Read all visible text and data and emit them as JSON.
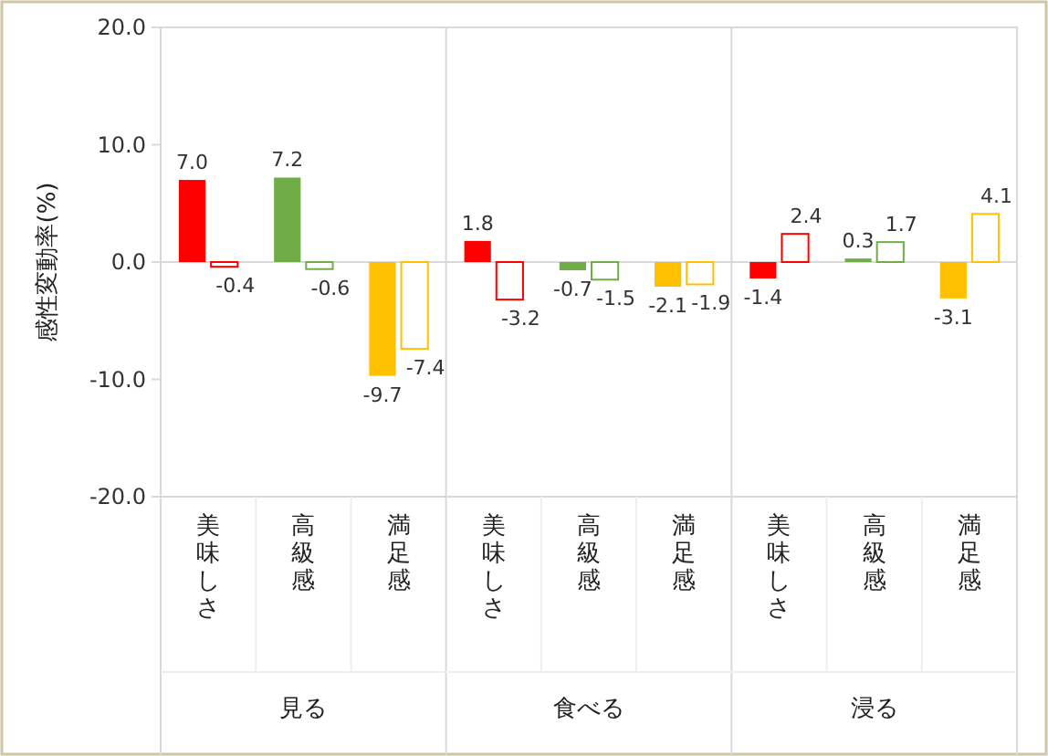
{
  "chart_data": {
    "type": "bar",
    "ylabel": "感性変動率(%)",
    "categories": [
      "美味しさ",
      "高級感",
      "満足感",
      "美味しさ",
      "高級感",
      "満足感",
      "美味しさ",
      "高級感",
      "満足感"
    ],
    "annotations": [
      "見る",
      "食べる",
      "浸る"
    ],
    "series": [
      {
        "colors": [
          "#ff0000",
          "#70ad47",
          "#ffc000",
          "#ff0000",
          "#70ad47",
          "#ffc000",
          "#ff0000",
          "#70ad47",
          "#ffc000"
        ],
        "values": [
          7.0,
          7.2,
          -9.7,
          1.8,
          -0.7,
          -2.1,
          -1.4,
          0.3,
          -3.1
        ],
        "value_labels": [
          "7.0",
          "7.2",
          "-9.7",
          "1.8",
          "-0.7",
          "-2.1",
          "-1.4",
          "0.3",
          "-3.1"
        ]
      },
      {
        "colors": [
          "#ff0000",
          "#70ad47",
          "#ffc000",
          "#ff0000",
          "#70ad47",
          "#ffc000",
          "#ff0000",
          "#70ad47",
          "#ffc000"
        ],
        "values": [
          -0.4,
          -0.6,
          -7.4,
          -3.2,
          -1.5,
          -1.9,
          2.4,
          1.7,
          4.1
        ],
        "value_labels": [
          "-0.4",
          "-0.6",
          "-7.4",
          "-3.2",
          "-1.5",
          "-1.9",
          "2.4",
          "1.7",
          "4.1"
        ]
      }
    ],
    "ylim": [
      -20,
      20
    ],
    "yticks": [
      {
        "value": 20,
        "label": "20.0"
      },
      {
        "value": 10,
        "label": "10.0"
      },
      {
        "value": 0,
        "label": "0.0"
      },
      {
        "value": -10,
        "label": "-10.0"
      },
      {
        "value": -20,
        "label": "-20.0"
      }
    ]
  }
}
